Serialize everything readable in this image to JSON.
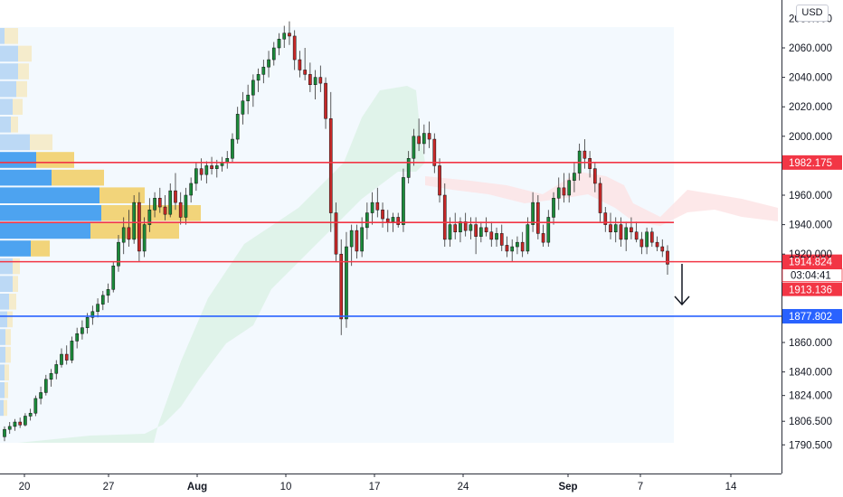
{
  "chart_data": {
    "type": "candlestick",
    "currency": "USD",
    "y_axis": {
      "range": [
        1780,
        2080
      ],
      "ticks": [
        "2060.000",
        "2040.000",
        "2020.000",
        "2000.000",
        "1960.000",
        "1940.000",
        "1920.000",
        "1860.000",
        "1840.000",
        "1824.000",
        "1806.500",
        "1790.500"
      ],
      "partial_top_tick": "2080.000"
    },
    "x_axis": {
      "labels": [
        {
          "text": "20",
          "bold": false
        },
        {
          "text": "27",
          "bold": false
        },
        {
          "text": "Aug",
          "bold": true
        },
        {
          "text": "10",
          "bold": false
        },
        {
          "text": "17",
          "bold": false
        },
        {
          "text": "24",
          "bold": false
        },
        {
          "text": "Sep",
          "bold": true
        },
        {
          "text": "7",
          "bold": false
        },
        {
          "text": "14",
          "bold": false
        }
      ]
    },
    "levels": [
      {
        "value": 1982.175,
        "label": "1982.175",
        "color": "#f23645"
      },
      {
        "value": 1941.5,
        "label": "",
        "color": "#f23645"
      },
      {
        "value": 1914.824,
        "label": "1914.824",
        "color": "#f23645"
      },
      {
        "value": 1877.802,
        "label": "1877.802",
        "color": "#2962ff"
      }
    ],
    "current_price": {
      "value": "1913.136",
      "countdown": "03:04:41",
      "color": "#f23645"
    },
    "annotations": [
      {
        "type": "arrow-down",
        "direction": "down"
      }
    ],
    "candles": [
      [
        1796,
        1803,
        1793,
        1801
      ],
      [
        1801,
        1806,
        1798,
        1803
      ],
      [
        1803,
        1808,
        1800,
        1806
      ],
      [
        1806,
        1809,
        1802,
        1804
      ],
      [
        1804,
        1812,
        1803,
        1810
      ],
      [
        1810,
        1815,
        1807,
        1812
      ],
      [
        1812,
        1824,
        1810,
        1822
      ],
      [
        1822,
        1830,
        1818,
        1826
      ],
      [
        1826,
        1838,
        1824,
        1835
      ],
      [
        1835,
        1842,
        1830,
        1839
      ],
      [
        1839,
        1848,
        1835,
        1845
      ],
      [
        1845,
        1856,
        1843,
        1852
      ],
      [
        1852,
        1858,
        1845,
        1848
      ],
      [
        1848,
        1864,
        1846,
        1861
      ],
      [
        1861,
        1870,
        1856,
        1866
      ],
      [
        1866,
        1875,
        1862,
        1870
      ],
      [
        1870,
        1880,
        1866,
        1877
      ],
      [
        1877,
        1885,
        1872,
        1881
      ],
      [
        1881,
        1890,
        1877,
        1886
      ],
      [
        1886,
        1895,
        1882,
        1892
      ],
      [
        1892,
        1900,
        1887,
        1896
      ],
      [
        1896,
        1915,
        1894,
        1912
      ],
      [
        1912,
        1933,
        1908,
        1928
      ],
      [
        1928,
        1945,
        1920,
        1938
      ],
      [
        1938,
        1950,
        1925,
        1930
      ],
      [
        1930,
        1960,
        1927,
        1955
      ],
      [
        1955,
        1962,
        1915,
        1922
      ],
      [
        1922,
        1945,
        1918,
        1940
      ],
      [
        1940,
        1958,
        1935,
        1950
      ],
      [
        1950,
        1962,
        1945,
        1958
      ],
      [
        1958,
        1965,
        1948,
        1952
      ],
      [
        1952,
        1960,
        1943,
        1947
      ],
      [
        1947,
        1968,
        1945,
        1963
      ],
      [
        1963,
        1975,
        1950,
        1955
      ],
      [
        1955,
        1962,
        1940,
        1945
      ],
      [
        1945,
        1965,
        1940,
        1960
      ],
      [
        1960,
        1972,
        1955,
        1968
      ],
      [
        1968,
        1982,
        1963,
        1978
      ],
      [
        1978,
        1985,
        1970,
        1974
      ],
      [
        1974,
        1983,
        1968,
        1980
      ],
      [
        1980,
        1986,
        1974,
        1978
      ],
      [
        1978,
        1984,
        1972,
        1980
      ],
      [
        1980,
        1986,
        1976,
        1982
      ],
      [
        1982,
        1990,
        1978,
        1985
      ],
      [
        1985,
        2002,
        1982,
        1998
      ],
      [
        1998,
        2020,
        1995,
        2015
      ],
      [
        2015,
        2030,
        2008,
        2024
      ],
      [
        2024,
        2035,
        2015,
        2028
      ],
      [
        2028,
        2042,
        2020,
        2038
      ],
      [
        2038,
        2046,
        2030,
        2042
      ],
      [
        2042,
        2052,
        2036,
        2047
      ],
      [
        2047,
        2058,
        2040,
        2052
      ],
      [
        2052,
        2064,
        2048,
        2060
      ],
      [
        2060,
        2070,
        2055,
        2066
      ],
      [
        2066,
        2075,
        2060,
        2070
      ],
      [
        2070,
        2078,
        2062,
        2068
      ],
      [
        2068,
        2072,
        2045,
        2052
      ],
      [
        2052,
        2058,
        2040,
        2045
      ],
      [
        2045,
        2060,
        2038,
        2042
      ],
      [
        2042,
        2050,
        2030,
        2035
      ],
      [
        2035,
        2045,
        2025,
        2040
      ],
      [
        2040,
        2048,
        2030,
        2036
      ],
      [
        2036,
        2040,
        2005,
        2012
      ],
      [
        2012,
        2030,
        1935,
        1948
      ],
      [
        1948,
        1955,
        1915,
        1920
      ],
      [
        1920,
        1930,
        1865,
        1876
      ],
      [
        1876,
        1935,
        1870,
        1925
      ],
      [
        1925,
        1940,
        1912,
        1936
      ],
      [
        1936,
        1940,
        1917,
        1922
      ],
      [
        1922,
        1945,
        1918,
        1938
      ],
      [
        1938,
        1955,
        1930,
        1948
      ],
      [
        1948,
        1962,
        1940,
        1955
      ],
      [
        1955,
        1965,
        1945,
        1950
      ],
      [
        1950,
        1955,
        1938,
        1944
      ],
      [
        1944,
        1950,
        1935,
        1942
      ],
      [
        1942,
        1948,
        1935,
        1945
      ],
      [
        1945,
        1948,
        1938,
        1940
      ],
      [
        1940,
        1978,
        1935,
        1972
      ],
      [
        1972,
        1990,
        1968,
        1985
      ],
      [
        1985,
        2005,
        1980,
        2000
      ],
      [
        2000,
        2012,
        1990,
        1995
      ],
      [
        1995,
        2008,
        1988,
        2002
      ],
      [
        2002,
        2010,
        1992,
        1998
      ],
      [
        1998,
        2002,
        1975,
        1980
      ],
      [
        1980,
        1985,
        1955,
        1960
      ],
      [
        1960,
        1968,
        1925,
        1930
      ],
      [
        1930,
        1945,
        1925,
        1940
      ],
      [
        1940,
        1948,
        1930,
        1935
      ],
      [
        1935,
        1945,
        1928,
        1942
      ],
      [
        1942,
        1948,
        1932,
        1936
      ],
      [
        1936,
        1945,
        1930,
        1940
      ],
      [
        1940,
        1945,
        1920,
        1932
      ],
      [
        1932,
        1942,
        1928,
        1938
      ],
      [
        1938,
        1945,
        1932,
        1935
      ],
      [
        1935,
        1942,
        1925,
        1930
      ],
      [
        1930,
        1938,
        1925,
        1934
      ],
      [
        1934,
        1940,
        1922,
        1926
      ],
      [
        1926,
        1932,
        1918,
        1922
      ],
      [
        1922,
        1930,
        1915,
        1925
      ],
      [
        1925,
        1932,
        1920,
        1928
      ],
      [
        1928,
        1935,
        1918,
        1922
      ],
      [
        1922,
        1945,
        1920,
        1940
      ],
      [
        1940,
        1962,
        1935,
        1955
      ],
      [
        1955,
        1960,
        1930,
        1934
      ],
      [
        1934,
        1940,
        1925,
        1928
      ],
      [
        1928,
        1950,
        1925,
        1945
      ],
      [
        1945,
        1962,
        1940,
        1958
      ],
      [
        1958,
        1972,
        1950,
        1965
      ],
      [
        1965,
        1975,
        1955,
        1960
      ],
      [
        1960,
        1975,
        1955,
        1970
      ],
      [
        1970,
        1982,
        1962,
        1975
      ],
      [
        1975,
        1995,
        1970,
        1990
      ],
      [
        1990,
        1998,
        1978,
        1985
      ],
      [
        1985,
        1990,
        1972,
        1978
      ],
      [
        1978,
        1982,
        1962,
        1968
      ],
      [
        1968,
        1972,
        1942,
        1948
      ],
      [
        1948,
        1952,
        1935,
        1940
      ],
      [
        1940,
        1948,
        1930,
        1935
      ],
      [
        1935,
        1945,
        1928,
        1940
      ],
      [
        1940,
        1945,
        1925,
        1930
      ],
      [
        1930,
        1942,
        1922,
        1938
      ],
      [
        1938,
        1945,
        1930,
        1935
      ],
      [
        1935,
        1942,
        1928,
        1930
      ],
      [
        1930,
        1935,
        1920,
        1925
      ],
      [
        1925,
        1938,
        1920,
        1935
      ],
      [
        1935,
        1938,
        1925,
        1928
      ],
      [
        1928,
        1932,
        1922,
        1925
      ],
      [
        1925,
        1930,
        1918,
        1922
      ],
      [
        1922,
        1926,
        1906,
        1913.136
      ]
    ]
  }
}
